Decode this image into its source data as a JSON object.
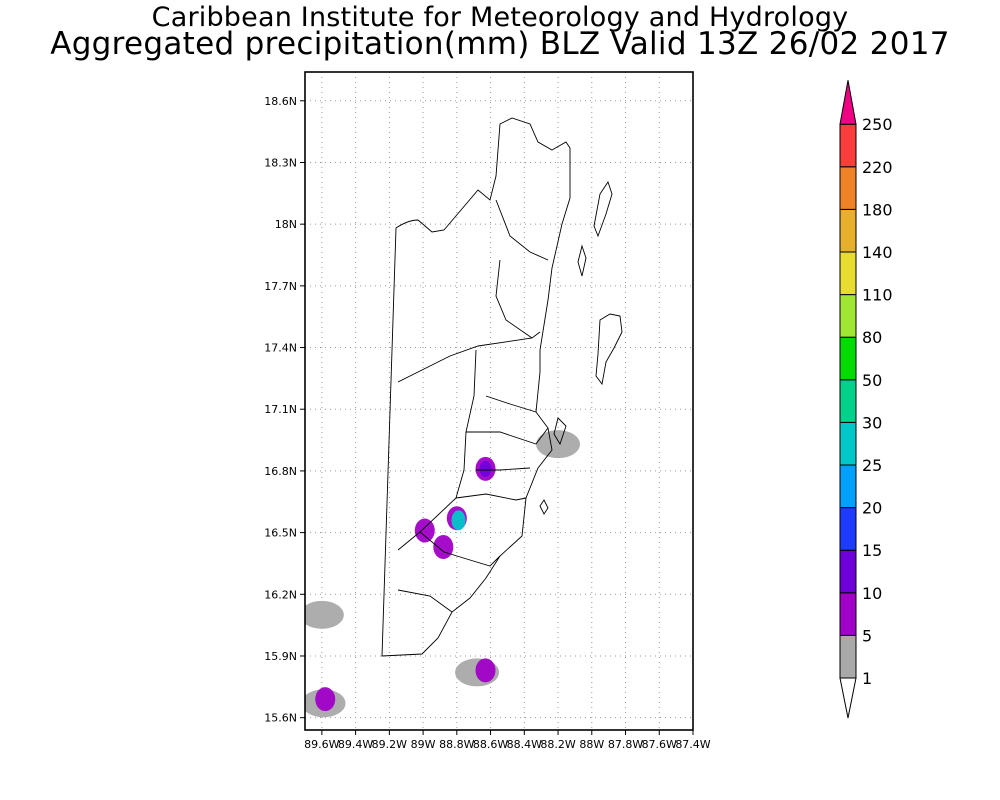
{
  "header": {
    "title_line1": "Caribbean Institute for Meteorology and Hydrology",
    "title_line2": "Aggregated precipitation(mm) BLZ Valid 13Z 26/02 2017"
  },
  "map": {
    "region": "Belize",
    "lat_range": [
      15.54,
      18.74
    ],
    "lon_range": [
      -89.7,
      -87.4
    ],
    "lat_ticks": [
      {
        "value": 15.6,
        "label": "15.6N"
      },
      {
        "value": 15.9,
        "label": "15.9N"
      },
      {
        "value": 16.2,
        "label": "16.2N"
      },
      {
        "value": 16.5,
        "label": "16.5N"
      },
      {
        "value": 16.8,
        "label": "16.8N"
      },
      {
        "value": 17.1,
        "label": "17.1N"
      },
      {
        "value": 17.4,
        "label": "17.4N"
      },
      {
        "value": 17.7,
        "label": "17.7N"
      },
      {
        "value": 18.0,
        "label": "18N"
      },
      {
        "value": 18.3,
        "label": "18.3N"
      },
      {
        "value": 18.6,
        "label": "18.6N"
      }
    ],
    "lon_ticks": [
      {
        "value": -89.6,
        "label": "89.6W"
      },
      {
        "value": -89.4,
        "label": "89.4W"
      },
      {
        "value": -89.2,
        "label": "89.2W"
      },
      {
        "value": -89.0,
        "label": "89W"
      },
      {
        "value": -88.8,
        "label": "88.8W"
      },
      {
        "value": -88.6,
        "label": "88.6W"
      },
      {
        "value": -88.4,
        "label": "88.4W"
      },
      {
        "value": -88.2,
        "label": "88.2W"
      },
      {
        "value": -88.0,
        "label": "88W"
      },
      {
        "value": -87.8,
        "label": "87.8W"
      },
      {
        "value": -87.6,
        "label": "87.6W"
      },
      {
        "value": -87.4,
        "label": "87.4W"
      }
    ],
    "precip_areas": [
      {
        "lon": -88.63,
        "lat": 16.81,
        "level": "5-10"
      },
      {
        "lon": -88.63,
        "lat": 16.81,
        "level": "10-15"
      },
      {
        "lon": -88.8,
        "lat": 16.57,
        "level": "5-10"
      },
      {
        "lon": -88.79,
        "lat": 16.56,
        "level": "25-30"
      },
      {
        "lon": -88.88,
        "lat": 16.43,
        "level": "5-10"
      },
      {
        "lon": -88.99,
        "lat": 16.51,
        "level": "5-10"
      },
      {
        "lon": -88.2,
        "lat": 16.93,
        "level": "1-5"
      },
      {
        "lon": -88.68,
        "lat": 15.82,
        "level": "1-5"
      },
      {
        "lon": -88.63,
        "lat": 15.83,
        "level": "5-10"
      },
      {
        "lon": -89.6,
        "lat": 16.1,
        "level": "1-5"
      },
      {
        "lon": -89.59,
        "lat": 15.67,
        "level": "1-5"
      },
      {
        "lon": -89.58,
        "lat": 15.69,
        "level": "5-10"
      }
    ]
  },
  "colorbar": {
    "levels": [
      {
        "label": "1",
        "color": "#ffffff"
      },
      {
        "label": "5",
        "color": "#a9a9a9"
      },
      {
        "label": "10",
        "color": "#a000c8"
      },
      {
        "label": "15",
        "color": "#6e00dc"
      },
      {
        "label": "20",
        "color": "#1e3cff"
      },
      {
        "label": "25",
        "color": "#00a0ff"
      },
      {
        "label": "30",
        "color": "#00c8c8"
      },
      {
        "label": "50",
        "color": "#00d28c"
      },
      {
        "label": "80",
        "color": "#00dc00"
      },
      {
        "label": "110",
        "color": "#a0e632"
      },
      {
        "label": "140",
        "color": "#e6dc32"
      },
      {
        "label": "180",
        "color": "#e6af2d"
      },
      {
        "label": "220",
        "color": "#f08228"
      },
      {
        "label": "250",
        "color": "#fa3c3c"
      }
    ],
    "top_arrow_color": "#f00082",
    "bottom_arrow_color": "#ffffff"
  }
}
